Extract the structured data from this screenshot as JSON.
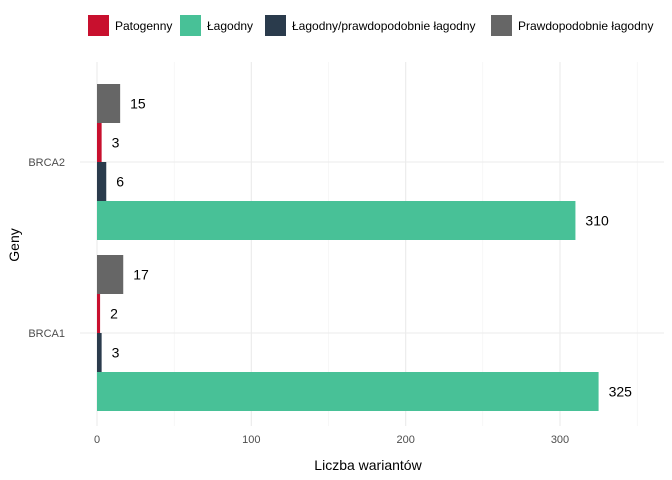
{
  "chart_data": {
    "type": "bar",
    "orientation": "horizontal",
    "categories": [
      "BRCA2",
      "BRCA1"
    ],
    "series": [
      {
        "name": "Prawdopodobnie łagodny",
        "color": "#666666",
        "values": [
          15,
          17
        ]
      },
      {
        "name": "Patogenny",
        "color": "#c8102e",
        "values": [
          3,
          2
        ]
      },
      {
        "name": "Łagodny/prawdopodobnie łagodny",
        "color": "#2a3b4c",
        "values": [
          6,
          3
        ]
      },
      {
        "name": "Łagodny",
        "color": "#48c197",
        "values": [
          310,
          325
        ]
      }
    ],
    "legend": {
      "position": "top",
      "order": [
        "Patogenny",
        "Łagodny",
        "Łagodny/prawdopodobnie łagodny",
        "Prawdopodobnie łagodny"
      ]
    },
    "xlabel": "Liczba wariantów",
    "ylabel": "Geny",
    "xlim": [
      0,
      350
    ],
    "xticks": [
      0,
      100,
      200,
      300
    ],
    "grid": true
  }
}
